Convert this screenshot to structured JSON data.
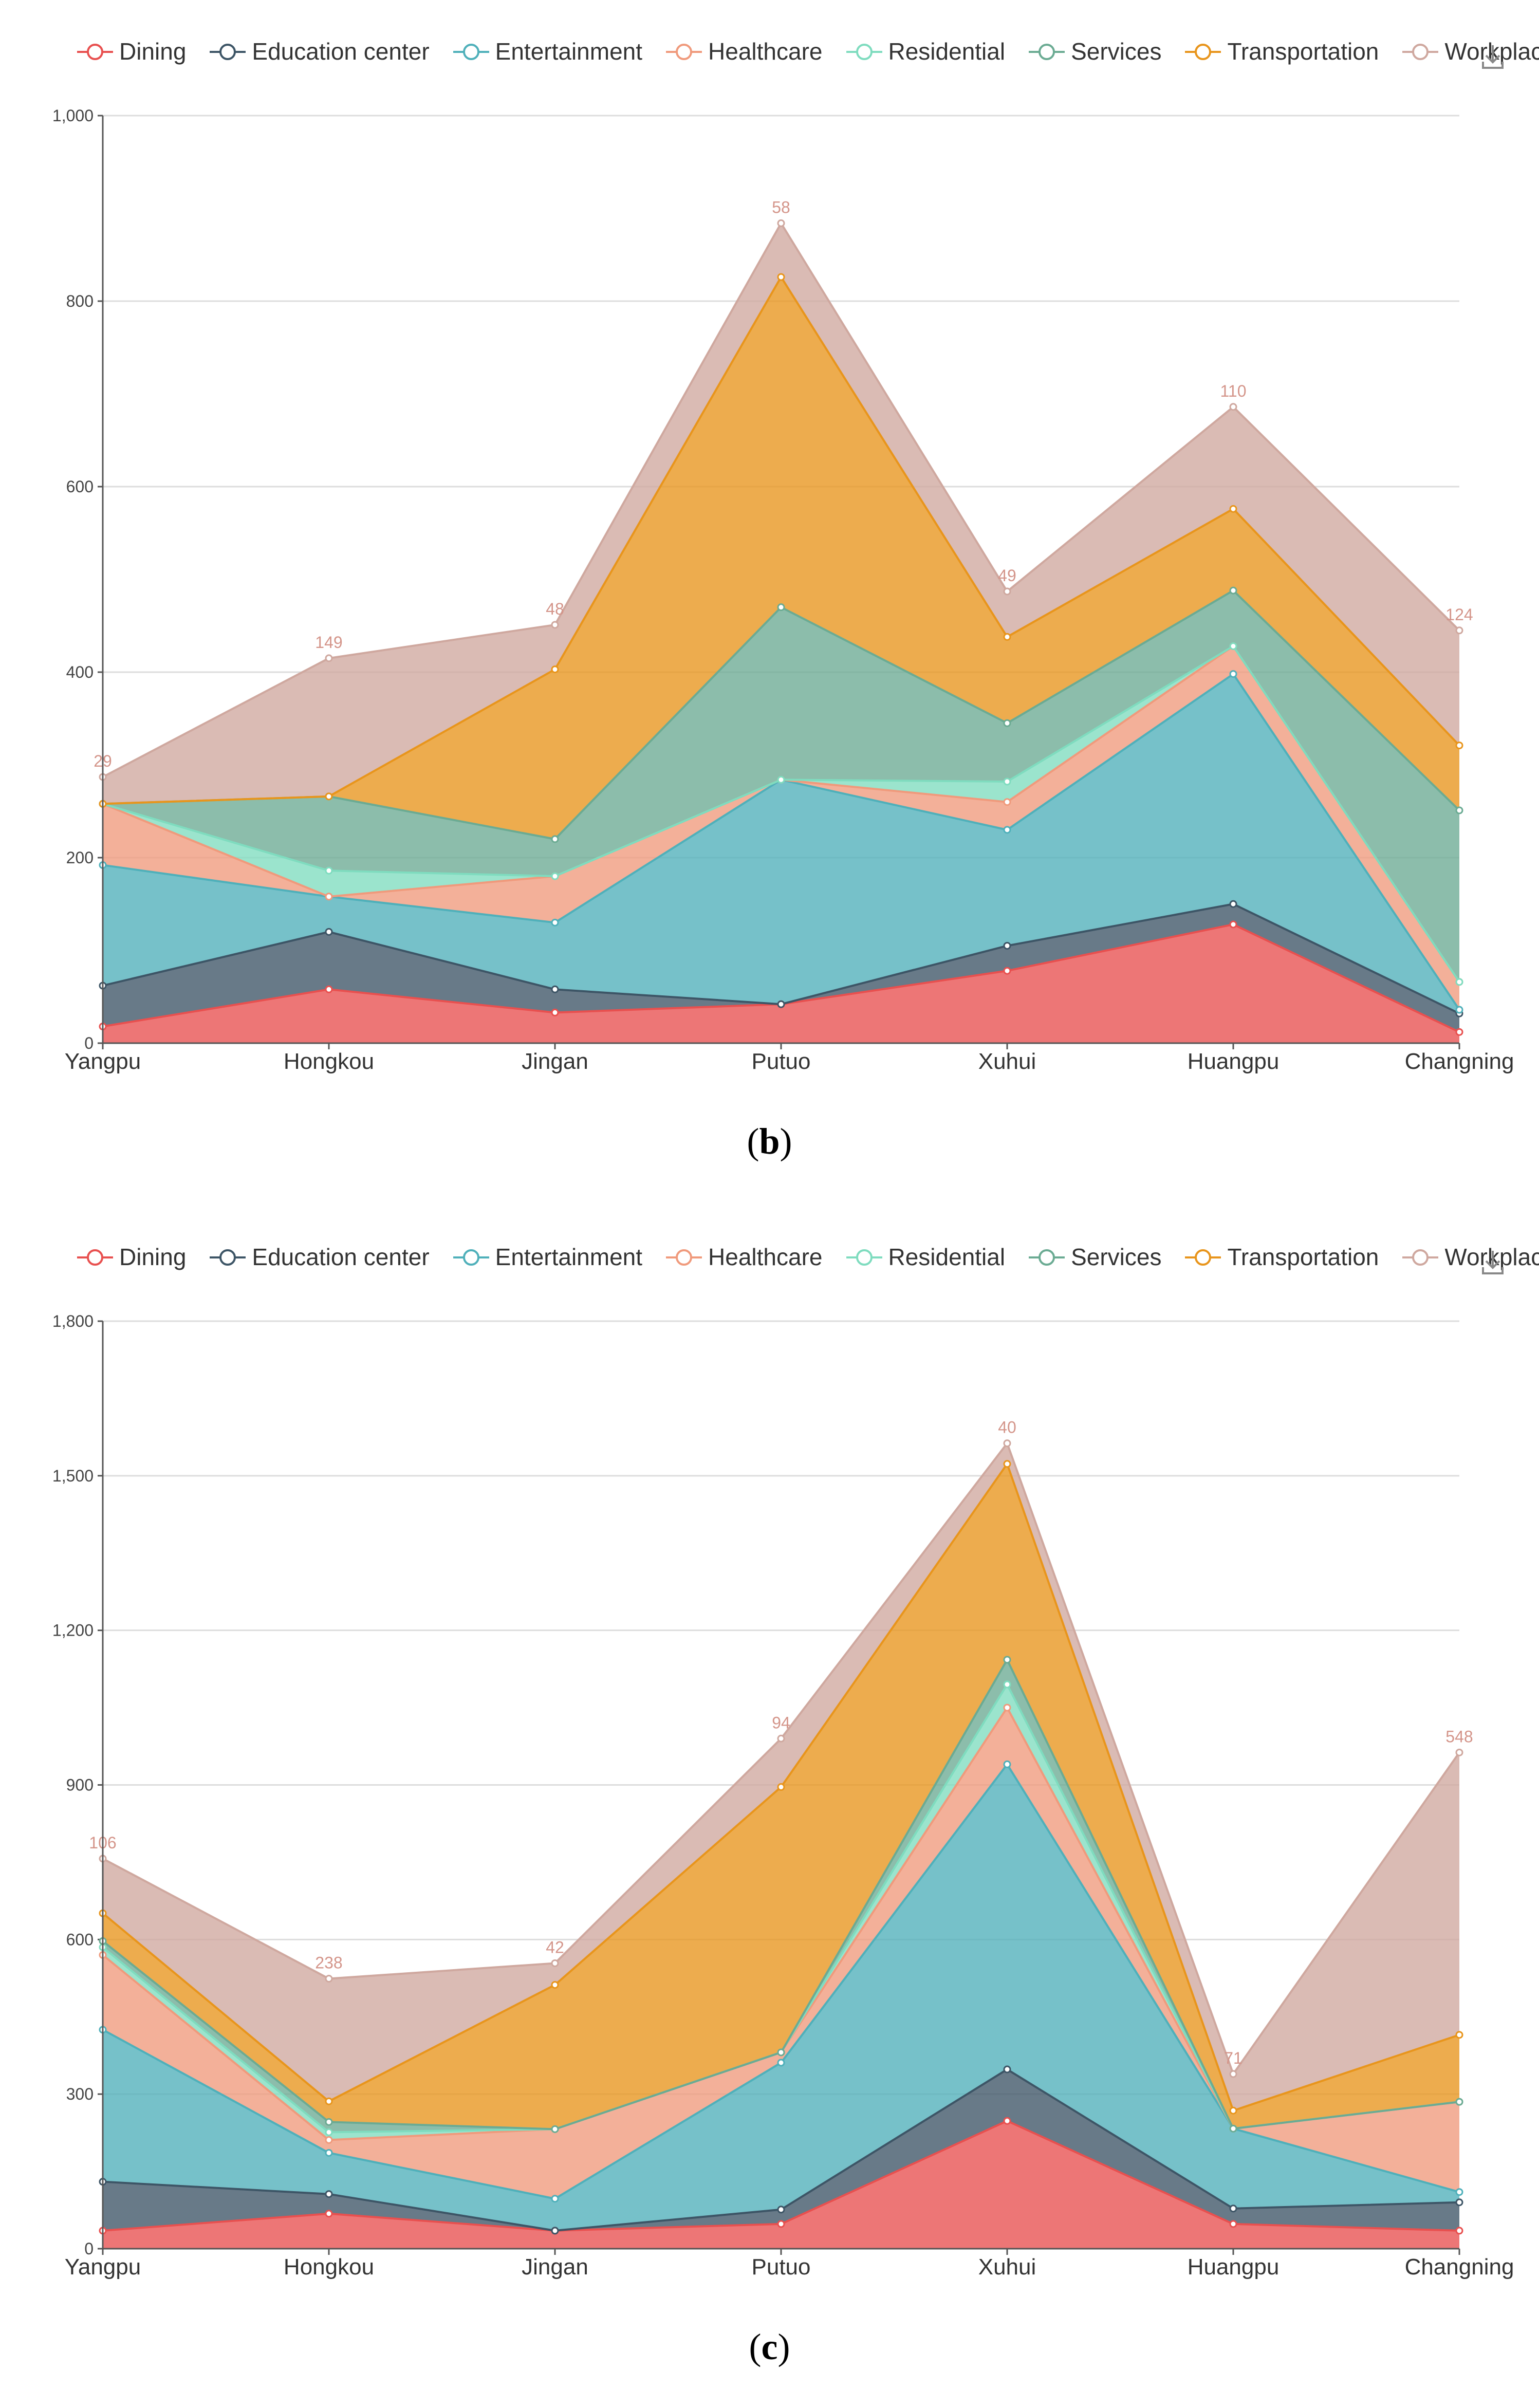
{
  "legend": {
    "series": [
      "Dining",
      "Education center",
      "Entertainment",
      "Healthcare",
      "Residential",
      "Services",
      "Transportation",
      "Workplace"
    ],
    "colors": [
      "#e8504f",
      "#3d5566",
      "#4fb0ba",
      "#f09a7c",
      "#7fdcbf",
      "#6bab93",
      "#e8951c",
      "#cfa89f"
    ]
  },
  "download_icon": "download-icon",
  "chart_data": [
    {
      "type": "area",
      "stacked": true,
      "caption_letter": "b",
      "categories": [
        "Yangpu",
        "Hongkou",
        "Jingan",
        "Putuo",
        "Xuhui",
        "Huangpu",
        "Changning"
      ],
      "ylim": [
        0,
        1000
      ],
      "yticks": [
        0,
        200,
        400,
        600,
        800,
        1000
      ],
      "ytick_labels": [
        "0",
        "200",
        "400",
        "600",
        "800",
        "1,000"
      ],
      "grid": true,
      "legend_position": "top",
      "series": [
        {
          "name": "Dining",
          "values": [
            18,
            58,
            33,
            42,
            78,
            128,
            12
          ]
        },
        {
          "name": "Education center",
          "values": [
            44,
            62,
            25,
            0,
            27,
            22,
            20
          ]
        },
        {
          "name": "Entertainment",
          "values": [
            130,
            38,
            72,
            242,
            125,
            248,
            4
          ]
        },
        {
          "name": "Healthcare",
          "values": [
            66,
            0,
            50,
            0,
            30,
            30,
            30
          ]
        },
        {
          "name": "Residential",
          "values": [
            0,
            28,
            0,
            0,
            22,
            0,
            0
          ]
        },
        {
          "name": "Services",
          "values": [
            0,
            80,
            40,
            186,
            63,
            60,
            185
          ]
        },
        {
          "name": "Transportation",
          "values": [
            0,
            0,
            183,
            356,
            93,
            88,
            70
          ]
        },
        {
          "name": "Workplace",
          "values": [
            29,
            149,
            48,
            58,
            49,
            110,
            124
          ]
        }
      ]
    },
    {
      "type": "area",
      "stacked": true,
      "caption_letter": "c",
      "categories": [
        "Yangpu",
        "Hongkou",
        "Jingan",
        "Putuo",
        "Xuhui",
        "Huangpu",
        "Changning"
      ],
      "ylim": [
        0,
        1800
      ],
      "yticks": [
        0,
        300,
        600,
        900,
        1200,
        1500,
        1800
      ],
      "ytick_labels": [
        "0",
        "300",
        "600",
        "900",
        "1,200",
        "1,500",
        "1,800"
      ],
      "grid": true,
      "legend_position": "top",
      "series": [
        {
          "name": "Dining",
          "values": [
            35,
            68,
            35,
            48,
            248,
            48,
            35
          ]
        },
        {
          "name": "Education center",
          "values": [
            95,
            38,
            0,
            28,
            100,
            30,
            55
          ]
        },
        {
          "name": "Entertainment",
          "values": [
            295,
            80,
            62,
            285,
            592,
            155,
            20
          ]
        },
        {
          "name": "Healthcare",
          "values": [
            145,
            25,
            135,
            20,
            110,
            0,
            175
          ]
        },
        {
          "name": "Residential",
          "values": [
            15,
            15,
            0,
            0,
            45,
            0,
            0
          ]
        },
        {
          "name": "Services",
          "values": [
            12,
            20,
            0,
            0,
            48,
            0,
            0
          ]
        },
        {
          "name": "Transportation",
          "values": [
            54,
            40,
            280,
            515,
            380,
            35,
            130
          ]
        },
        {
          "name": "Workplace",
          "values": [
            106,
            238,
            42,
            94,
            40,
            71,
            548
          ]
        }
      ]
    }
  ]
}
